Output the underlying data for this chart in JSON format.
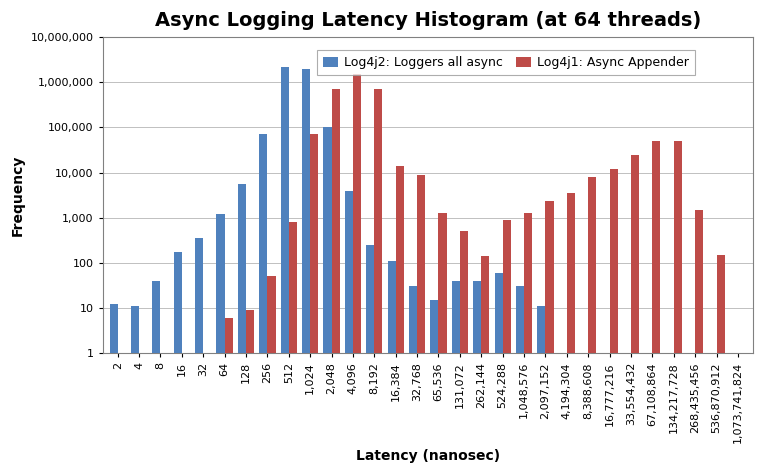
{
  "title": "Async Logging Latency Histogram (at 64 threads)",
  "xlabel": "Latency (nanosec)",
  "ylabel": "Frequency",
  "legend_labels": [
    "Log4j2: Loggers all async",
    "Log4j1: Async Appender"
  ],
  "bar_color_blue": "#4F81BD",
  "bar_color_red": "#BE4B48",
  "categories": [
    "2",
    "4",
    "8",
    "16",
    "32",
    "64",
    "128",
    "256",
    "512",
    "1,024",
    "2,048",
    "4,096",
    "8,192",
    "16,384",
    "32,768",
    "65,536",
    "131,072",
    "262,144",
    "524,288",
    "1,048,576",
    "2,097,152",
    "4,194,304",
    "8,388,608",
    "16,777,216",
    "33,554,432",
    "67,108,864",
    "134,217,728",
    "268,435,456",
    "536,870,912",
    "1,073,741,824"
  ],
  "log4j2": [
    12,
    11,
    40,
    175,
    350,
    1200,
    5600,
    70000,
    2200000,
    2000000,
    100000,
    4000,
    250,
    110,
    30,
    15,
    40,
    40,
    60,
    30,
    11,
    0,
    0,
    0,
    0,
    0,
    0,
    0,
    0,
    0
  ],
  "log4j1": [
    0,
    0,
    0,
    0,
    0,
    6,
    9,
    50,
    800,
    70000,
    700000,
    1500000,
    700000,
    14000,
    9000,
    1300,
    500,
    140,
    900,
    1300,
    2400,
    3500,
    8000,
    12000,
    25000,
    50000,
    50000,
    1500,
    150,
    0
  ],
  "ylim_min": 1,
  "ylim_max": 10000000,
  "yticks": [
    1,
    10,
    100,
    1000,
    10000,
    100000,
    1000000,
    10000000
  ],
  "ytick_labels": [
    "1",
    "10",
    "100",
    "1,000",
    "10,000",
    "100,000",
    "1,000,000",
    "10,000,000"
  ],
  "background_color": "#ffffff",
  "plot_bg_color": "#ffffff",
  "grid_color": "#C0C0C0",
  "title_fontsize": 14,
  "axis_label_fontsize": 10,
  "tick_fontsize": 8,
  "legend_fontsize": 9
}
